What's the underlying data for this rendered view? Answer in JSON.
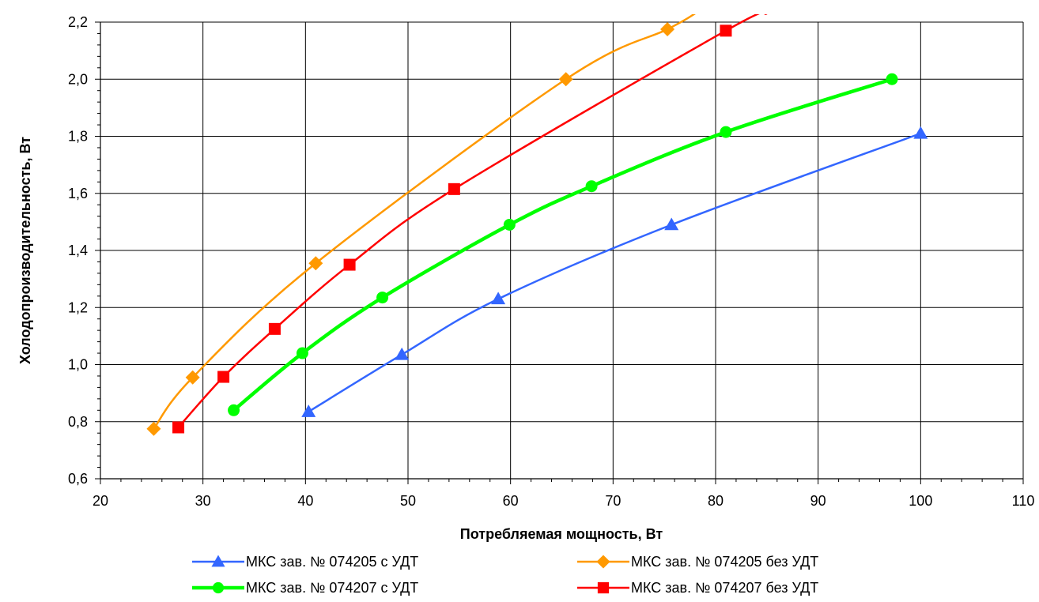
{
  "chart_data": {
    "type": "line",
    "title": "",
    "xlabel": "Потребляемая мощность, Вт",
    "ylabel": "Холодопроизводительность, Вт",
    "xlim": [
      20,
      110
    ],
    "ylim": [
      0.6,
      2.2
    ],
    "x_ticks": [
      "20",
      "30",
      "40",
      "50",
      "60",
      "70",
      "80",
      "90",
      "100",
      "110"
    ],
    "y_ticks": [
      "0,6",
      "0,8",
      "1,0",
      "1,2",
      "1,4",
      "1,6",
      "1,8",
      "2,0",
      "2,2"
    ],
    "grid": true,
    "legend_position": "bottom",
    "series": [
      {
        "name": "МКС зав. № 074205 с УДТ",
        "color": "#3366ff",
        "marker": "triangle",
        "x": [
          40.3,
          49.4,
          58.8,
          75.7,
          100.0
        ],
        "y": [
          0.835,
          1.035,
          1.23,
          1.49,
          1.81
        ]
      },
      {
        "name": "МКС зав. № 074205  без УДТ",
        "color": "#ff9900",
        "marker": "diamond",
        "x": [
          25.2,
          29.0,
          41.0,
          65.4,
          75.3,
          78.0
        ],
        "y": [
          0.775,
          0.955,
          1.355,
          2.0,
          2.175,
          2.23
        ]
      },
      {
        "name": "МКС зав. № 074207 с УДТ",
        "color": "#00ff00",
        "marker": "circle",
        "x": [
          33.0,
          39.7,
          47.5,
          59.9,
          67.9,
          81.0,
          97.2
        ],
        "y": [
          0.84,
          1.04,
          1.235,
          1.49,
          1.625,
          1.815,
          2.0
        ]
      },
      {
        "name": "МКС зав. № 074207  без УДТ",
        "color": "#ff0000",
        "marker": "square",
        "x": [
          27.6,
          32.0,
          37.0,
          44.3,
          54.5,
          81.0,
          85.0
        ],
        "y": [
          0.78,
          0.957,
          1.125,
          1.35,
          1.615,
          2.17,
          2.23
        ]
      }
    ]
  }
}
